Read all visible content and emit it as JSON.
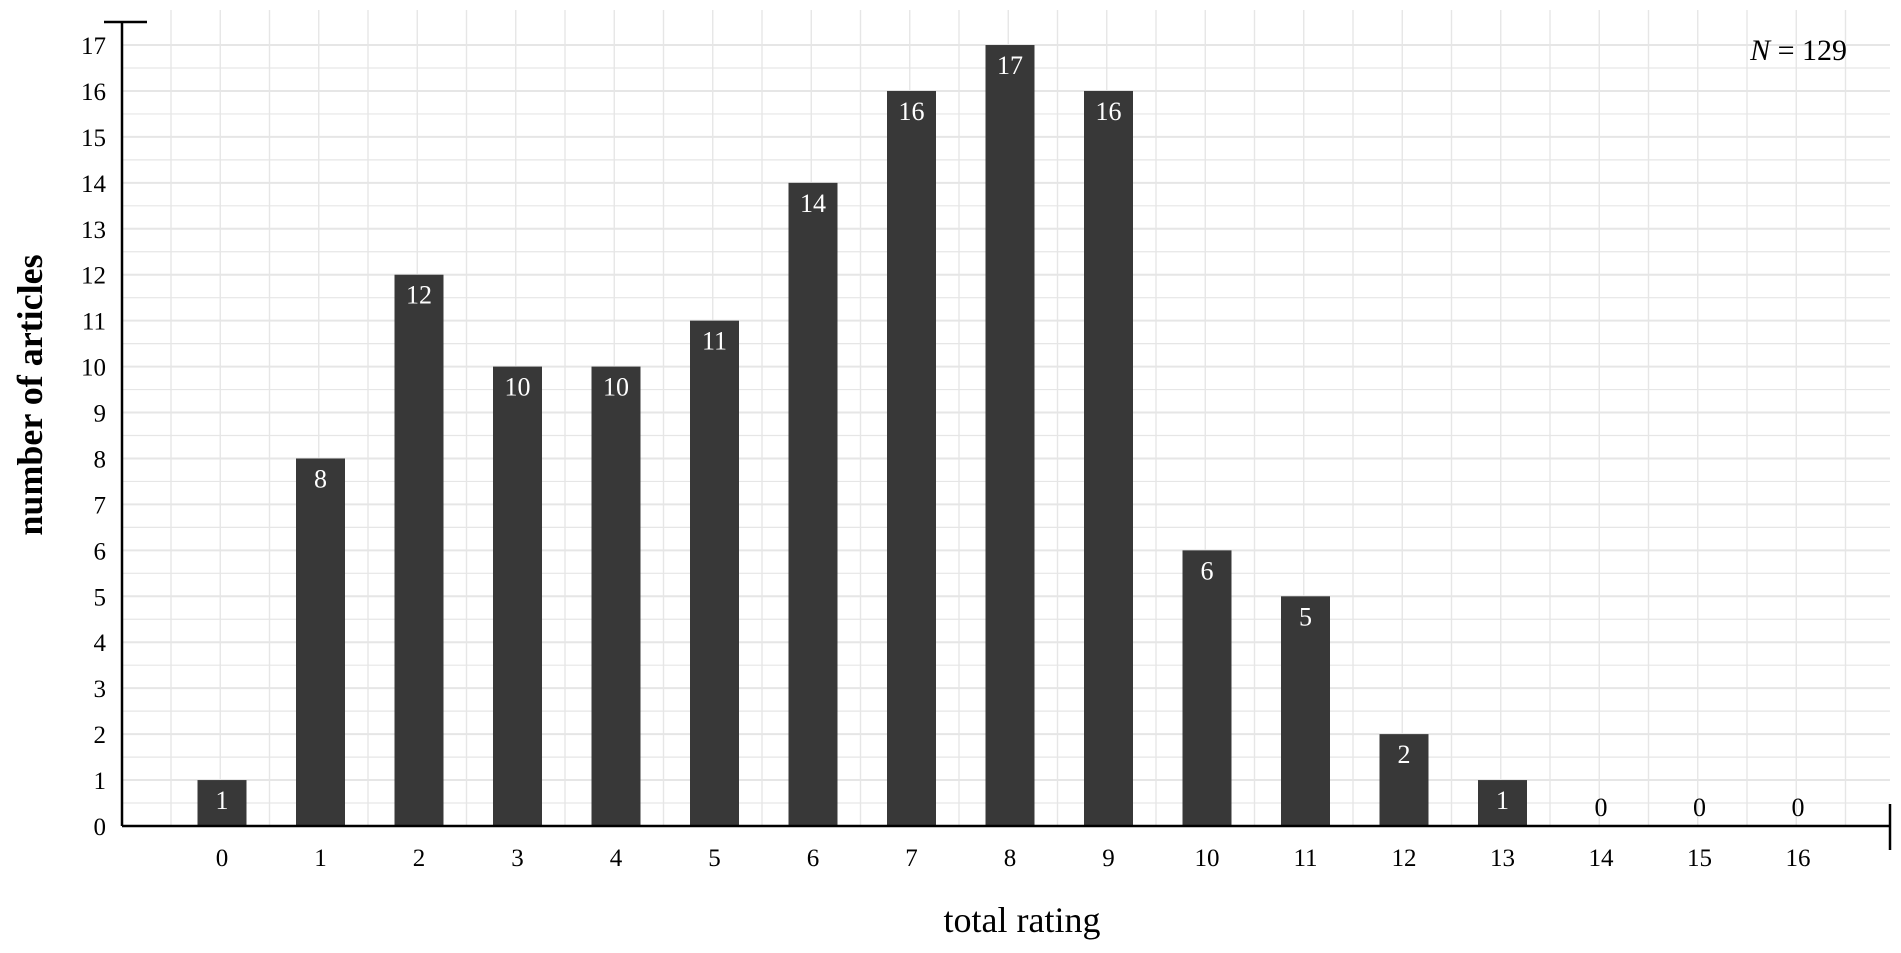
{
  "chart_data": {
    "type": "bar",
    "categories": [
      "0",
      "1",
      "2",
      "3",
      "4",
      "5",
      "6",
      "7",
      "8",
      "9",
      "10",
      "11",
      "12",
      "13",
      "14",
      "15",
      "16"
    ],
    "values": [
      1,
      8,
      12,
      10,
      10,
      11,
      14,
      16,
      17,
      16,
      6,
      5,
      2,
      1,
      0,
      0,
      0
    ],
    "data_labels": [
      "1",
      "8",
      "12",
      "10",
      "10",
      "11",
      "14",
      "16",
      "17",
      "16",
      "6",
      "5",
      "2",
      "1",
      "0",
      "0",
      "0"
    ],
    "y_ticks": [
      "0",
      "1",
      "2",
      "3",
      "4",
      "5",
      "6",
      "7",
      "8",
      "9",
      "10",
      "11",
      "12",
      "13",
      "14",
      "15",
      "16",
      "17"
    ],
    "xlabel": "total rating",
    "ylabel": "number of articles",
    "annotation": {
      "italic": "N",
      "rest": " = 129"
    },
    "ylim": [
      0,
      17
    ],
    "grid": true,
    "colors": {
      "bar": "#383838",
      "grid": "#e6e6e6",
      "axis": "#000000",
      "bar_label": "#ffffff",
      "zero_label": "#000000"
    }
  }
}
